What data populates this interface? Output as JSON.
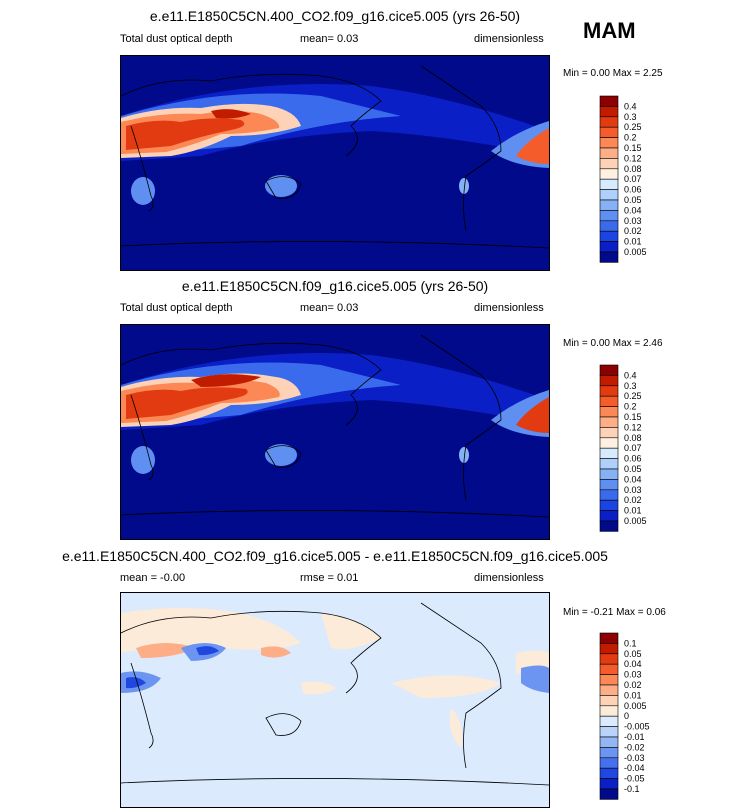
{
  "season": "MAM",
  "chart_data": [
    {
      "type": "heatmap",
      "title": "e.e11.E1850C5CN.400_CO2.f09_g16.cice5.005 (yrs 26-50)",
      "left_label": "Total dust optical depth",
      "center_label": "mean=   0.03",
      "right_label": "dimensionless",
      "minmax": "Min =   0.00 Max =   2.25",
      "colorbar": {
        "levels": [
          "0.4",
          "0.3",
          "0.25",
          "0.2",
          "0.15",
          "0.12",
          "0.08",
          "0.07",
          "0.06",
          "0.05",
          "0.04",
          "0.03",
          "0.02",
          "0.01",
          "0.005"
        ],
        "colors": [
          "#8b0000",
          "#c21c00",
          "#e23b12",
          "#f45c2c",
          "#fb8855",
          "#fdae86",
          "#fdd2b6",
          "#fff0e2",
          "#d7ebff",
          "#afd0fb",
          "#86b1f4",
          "#5f8ff0",
          "#3a6bed",
          "#1b44e3",
          "#0a1fc5",
          "#000a8a"
        ]
      }
    },
    {
      "type": "heatmap",
      "title": "e.e11.E1850C5CN.f09_g16.cice5.005 (yrs 26-50)",
      "left_label": "Total dust optical depth",
      "center_label": "mean=   0.03",
      "right_label": "dimensionless",
      "minmax": "Min =   0.00 Max =   2.46",
      "colorbar": {
        "levels": [
          "0.4",
          "0.3",
          "0.25",
          "0.2",
          "0.15",
          "0.12",
          "0.08",
          "0.07",
          "0.06",
          "0.05",
          "0.04",
          "0.03",
          "0.02",
          "0.01",
          "0.005"
        ],
        "colors": [
          "#8b0000",
          "#c21c00",
          "#e23b12",
          "#f45c2c",
          "#fb8855",
          "#fdae86",
          "#fdd2b6",
          "#fff0e2",
          "#d7ebff",
          "#afd0fb",
          "#86b1f4",
          "#5f8ff0",
          "#3a6bed",
          "#1b44e3",
          "#0a1fc5",
          "#000a8a"
        ]
      }
    },
    {
      "type": "heatmap",
      "title": "e.e11.E1850C5CN.400_CO2.f09_g16.cice5.005 - e.e11.E1850C5CN.f09_g16.cice5.005",
      "left_label": "mean =  -0.00",
      "center_label": "rmse =  0.01",
      "right_label": "dimensionless",
      "minmax": "Min =  -0.21 Max =   0.06",
      "colorbar": {
        "levels": [
          "0.1",
          "0.05",
          "0.04",
          "0.03",
          "0.02",
          "0.01",
          "0.005",
          "0",
          "-0.005",
          "-0.01",
          "-0.02",
          "-0.03",
          "-0.04",
          "-0.05",
          "-0.1"
        ],
        "colors": [
          "#8b0000",
          "#c21c00",
          "#e23b12",
          "#f45c2c",
          "#fb8855",
          "#fdae86",
          "#fdd2b6",
          "#fdebd9",
          "#dbeafd",
          "#b9d3fa",
          "#93b6f5",
          "#6b95f0",
          "#4571ec",
          "#2048e0",
          "#0a1fc5",
          "#000a8a"
        ]
      }
    }
  ]
}
